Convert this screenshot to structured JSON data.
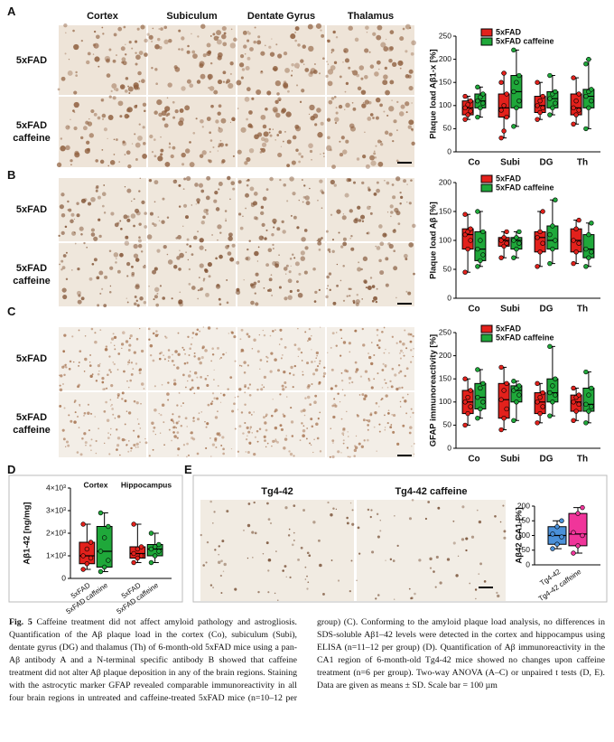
{
  "panels": {
    "A": {
      "letter": "A",
      "columns": [
        "Cortex",
        "Subiculum",
        "Dentate Gyrus",
        "Thalamus"
      ],
      "rows": [
        "5xFAD",
        "5xFAD caffeine"
      ]
    },
    "B": {
      "letter": "B",
      "rows": [
        "5xFAD",
        "5xFAD caffeine"
      ]
    },
    "C": {
      "letter": "C",
      "rows": [
        "5xFAD",
        "5xFAD caffeine"
      ]
    },
    "D": {
      "letter": "D"
    },
    "E": {
      "letter": "E",
      "columns": [
        "Tg4-42",
        "Tg4-42 caffeine"
      ]
    }
  },
  "chart_data": [
    {
      "type": "box",
      "ylabel": "Plaque load Aβ1-x [%]",
      "ylim": [
        0,
        250
      ],
      "yticks": [
        0,
        50,
        100,
        150,
        200,
        250
      ],
      "legend": "upper left",
      "categories": [
        "Co",
        "Subi",
        "DG",
        "Th"
      ],
      "series": [
        {
          "name": "5xFAD",
          "color": "#e3211c",
          "boxes": [
            {
              "min": 70,
              "q1": 80,
              "median": 95,
              "q3": 110,
              "max": 120,
              "points": [
                70,
                80,
                88,
                95,
                102,
                110,
                120
              ]
            },
            {
              "min": 30,
              "q1": 75,
              "median": 95,
              "q3": 125,
              "max": 170,
              "points": [
                30,
                45,
                75,
                90,
                100,
                125,
                150,
                170
              ]
            },
            {
              "min": 70,
              "q1": 85,
              "median": 100,
              "q3": 120,
              "max": 150,
              "points": [
                70,
                85,
                95,
                100,
                110,
                120,
                150
              ]
            },
            {
              "min": 60,
              "q1": 80,
              "median": 95,
              "q3": 125,
              "max": 160,
              "points": [
                60,
                80,
                90,
                95,
                110,
                125,
                160
              ]
            }
          ]
        },
        {
          "name": "5xFAD caffeine",
          "color": "#1fa83a",
          "boxes": [
            {
              "min": 75,
              "q1": 95,
              "median": 110,
              "q3": 125,
              "max": 140,
              "points": [
                75,
                95,
                105,
                110,
                118,
                125,
                140
              ]
            },
            {
              "min": 55,
              "q1": 95,
              "median": 130,
              "q3": 165,
              "max": 220,
              "points": [
                55,
                95,
                110,
                130,
                150,
                165,
                220
              ]
            },
            {
              "min": 80,
              "q1": 95,
              "median": 115,
              "q3": 130,
              "max": 165,
              "points": [
                80,
                95,
                105,
                115,
                125,
                130,
                165
              ]
            },
            {
              "min": 50,
              "q1": 95,
              "median": 120,
              "q3": 135,
              "max": 200,
              "points": [
                50,
                95,
                110,
                120,
                130,
                135,
                190,
                200
              ]
            }
          ]
        }
      ]
    },
    {
      "type": "box",
      "ylabel": "Plaque load Aβ [%]",
      "ylim": [
        0,
        200
      ],
      "yticks": [
        0,
        50,
        100,
        150,
        200
      ],
      "legend": "upper left",
      "categories": [
        "Co",
        "Subi",
        "DG",
        "Th"
      ],
      "series": [
        {
          "name": "5xFAD",
          "color": "#e3211c",
          "boxes": [
            {
              "min": 45,
              "q1": 85,
              "median": 110,
              "q3": 120,
              "max": 145,
              "points": [
                45,
                85,
                100,
                110,
                115,
                120,
                145
              ]
            },
            {
              "min": 70,
              "q1": 90,
              "median": 100,
              "q3": 105,
              "max": 115,
              "points": [
                70,
                90,
                95,
                100,
                105,
                115
              ]
            },
            {
              "min": 55,
              "q1": 80,
              "median": 105,
              "q3": 115,
              "max": 150,
              "points": [
                55,
                80,
                95,
                105,
                115,
                150
              ]
            },
            {
              "min": 60,
              "q1": 80,
              "median": 100,
              "q3": 120,
              "max": 135,
              "points": [
                60,
                80,
                95,
                100,
                120,
                135
              ]
            }
          ]
        },
        {
          "name": "5xFAD caffeine",
          "color": "#1fa83a",
          "boxes": [
            {
              "min": 55,
              "q1": 65,
              "median": 85,
              "q3": 115,
              "max": 150,
              "points": [
                55,
                65,
                75,
                85,
                100,
                115,
                150
              ]
            },
            {
              "min": 70,
              "q1": 85,
              "median": 100,
              "q3": 105,
              "max": 115,
              "points": [
                70,
                85,
                95,
                100,
                105,
                115
              ]
            },
            {
              "min": 60,
              "q1": 85,
              "median": 100,
              "q3": 125,
              "max": 170,
              "points": [
                60,
                85,
                100,
                110,
                125,
                170
              ]
            },
            {
              "min": 55,
              "q1": 70,
              "median": 85,
              "q3": 110,
              "max": 130,
              "points": [
                55,
                70,
                80,
                85,
                110,
                130
              ]
            }
          ]
        }
      ]
    },
    {
      "type": "box",
      "ylabel": "GFAP immunoreactivity [%]",
      "ylim": [
        0,
        250
      ],
      "yticks": [
        0,
        50,
        100,
        150,
        200,
        250
      ],
      "legend": "upper left",
      "categories": [
        "Co",
        "Subi",
        "DG",
        "Th"
      ],
      "series": [
        {
          "name": "5xFAD",
          "color": "#e3211c",
          "boxes": [
            {
              "min": 50,
              "q1": 75,
              "median": 100,
              "q3": 125,
              "max": 150,
              "points": [
                50,
                75,
                90,
                100,
                110,
                125,
                150
              ]
            },
            {
              "min": 40,
              "q1": 65,
              "median": 105,
              "q3": 140,
              "max": 175,
              "points": [
                40,
                65,
                85,
                105,
                125,
                140,
                175
              ]
            },
            {
              "min": 55,
              "q1": 75,
              "median": 100,
              "q3": 120,
              "max": 140,
              "points": [
                55,
                75,
                90,
                100,
                110,
                120,
                140
              ]
            },
            {
              "min": 60,
              "q1": 80,
              "median": 100,
              "q3": 115,
              "max": 130,
              "points": [
                60,
                80,
                95,
                100,
                110,
                115,
                130
              ]
            }
          ]
        },
        {
          "name": "5xFAD caffeine",
          "color": "#1fa83a",
          "boxes": [
            {
              "min": 65,
              "q1": 85,
              "median": 110,
              "q3": 140,
              "max": 170,
              "points": [
                65,
                85,
                100,
                110,
                130,
                140,
                170
              ]
            },
            {
              "min": 60,
              "q1": 100,
              "median": 125,
              "q3": 135,
              "max": 145,
              "points": [
                60,
                100,
                115,
                125,
                130,
                135,
                145
              ]
            },
            {
              "min": 70,
              "q1": 100,
              "median": 120,
              "q3": 150,
              "max": 220,
              "points": [
                70,
                100,
                115,
                120,
                135,
                150,
                220
              ]
            },
            {
              "min": 55,
              "q1": 80,
              "median": 95,
              "q3": 130,
              "max": 165,
              "points": [
                55,
                80,
                90,
                95,
                115,
                130,
                165
              ]
            }
          ]
        }
      ]
    },
    {
      "type": "box",
      "ylabel": "Aβ1-42 [ng/mg]",
      "ylim": [
        0,
        4000
      ],
      "yticks": [
        0,
        {
          "value": 1000,
          "label": "1×10³"
        },
        {
          "value": 2000,
          "label": "2×10³"
        },
        {
          "value": 3000,
          "label": "3×10³"
        },
        {
          "value": 4000,
          "label": "4×10³"
        }
      ],
      "categories": [
        "Cortex",
        "Hippocampus"
      ],
      "series": [
        {
          "name": "5xFAD",
          "color": "#e3211c",
          "boxes": [
            {
              "min": 400,
              "q1": 650,
              "median": 1000,
              "q3": 1600,
              "max": 2400,
              "points": [
                400,
                650,
                900,
                1000,
                1300,
                1600,
                2400
              ]
            },
            {
              "min": 700,
              "q1": 900,
              "median": 1100,
              "q3": 1400,
              "max": 2400,
              "points": [
                700,
                900,
                1000,
                1100,
                1300,
                1400,
                2400
              ]
            }
          ]
        },
        {
          "name": "5xFAD caffeine",
          "color": "#1fa83a",
          "boxes": [
            {
              "min": 300,
              "q1": 500,
              "median": 1200,
              "q3": 2300,
              "max": 2900,
              "points": [
                300,
                500,
                800,
                1200,
                1800,
                2300,
                2900
              ]
            },
            {
              "min": 700,
              "q1": 1000,
              "median": 1300,
              "q3": 1500,
              "max": 2000,
              "points": [
                700,
                1000,
                1200,
                1300,
                1400,
                1500,
                2000
              ]
            }
          ]
        }
      ]
    },
    {
      "type": "box",
      "ylabel": "Aβ42 CA1 [%]",
      "ylim": [
        0,
        200
      ],
      "yticks": [
        0,
        50,
        100,
        150,
        200
      ],
      "categories": [
        null
      ],
      "series": [
        {
          "name": "Tg4-42",
          "color": "#4a90d9",
          "boxes": [
            {
              "min": 55,
              "q1": 70,
              "median": 100,
              "q3": 130,
              "max": 150,
              "points": [
                55,
                70,
                95,
                105,
                130,
                150
              ]
            }
          ]
        },
        {
          "name": "Tg4-42 caffeine",
          "color": "#f0359a",
          "boxes": [
            {
              "min": 40,
              "q1": 65,
              "median": 105,
              "q3": 175,
              "max": 195,
              "points": [
                40,
                65,
                100,
                110,
                175,
                195
              ]
            }
          ]
        }
      ]
    }
  ],
  "caption": {
    "label": "Fig. 5",
    "text": "Caffeine treatment did not affect amyloid pathology and astrogliosis. Quantification of the Aβ plaque load in the cortex (Co), subiculum (Subi), dentate gyrus (DG) and thalamus (Th) of 6-month-old 5xFAD mice using a pan-Aβ antibody A and a N-terminal specific antibody B showed that caffeine treatment did not alter Aβ plaque deposition in any of the brain regions. Staining with the astrocytic marker GFAP revealed comparable immunoreactivity in all four brain regions in untreated and caffeine-treated 5xFAD mice (n=10–12 per group) (C). Conforming to the amyloid plaque load analysis, no differences in SDS-soluble Aβ1–42 levels were detected in the cortex and hippocampus using ELISA (n=11–12 per group) (D). Quantification of Aβ immunoreactivity in the CA1 region of 6-month-old Tg4-42 mice showed no changes upon caffeine treatment (n=6 per group). Two-way ANOVA (A–C) or unpaired t tests (D, E). Data are given as means ± SD. Scale bar = 100 µm"
  }
}
